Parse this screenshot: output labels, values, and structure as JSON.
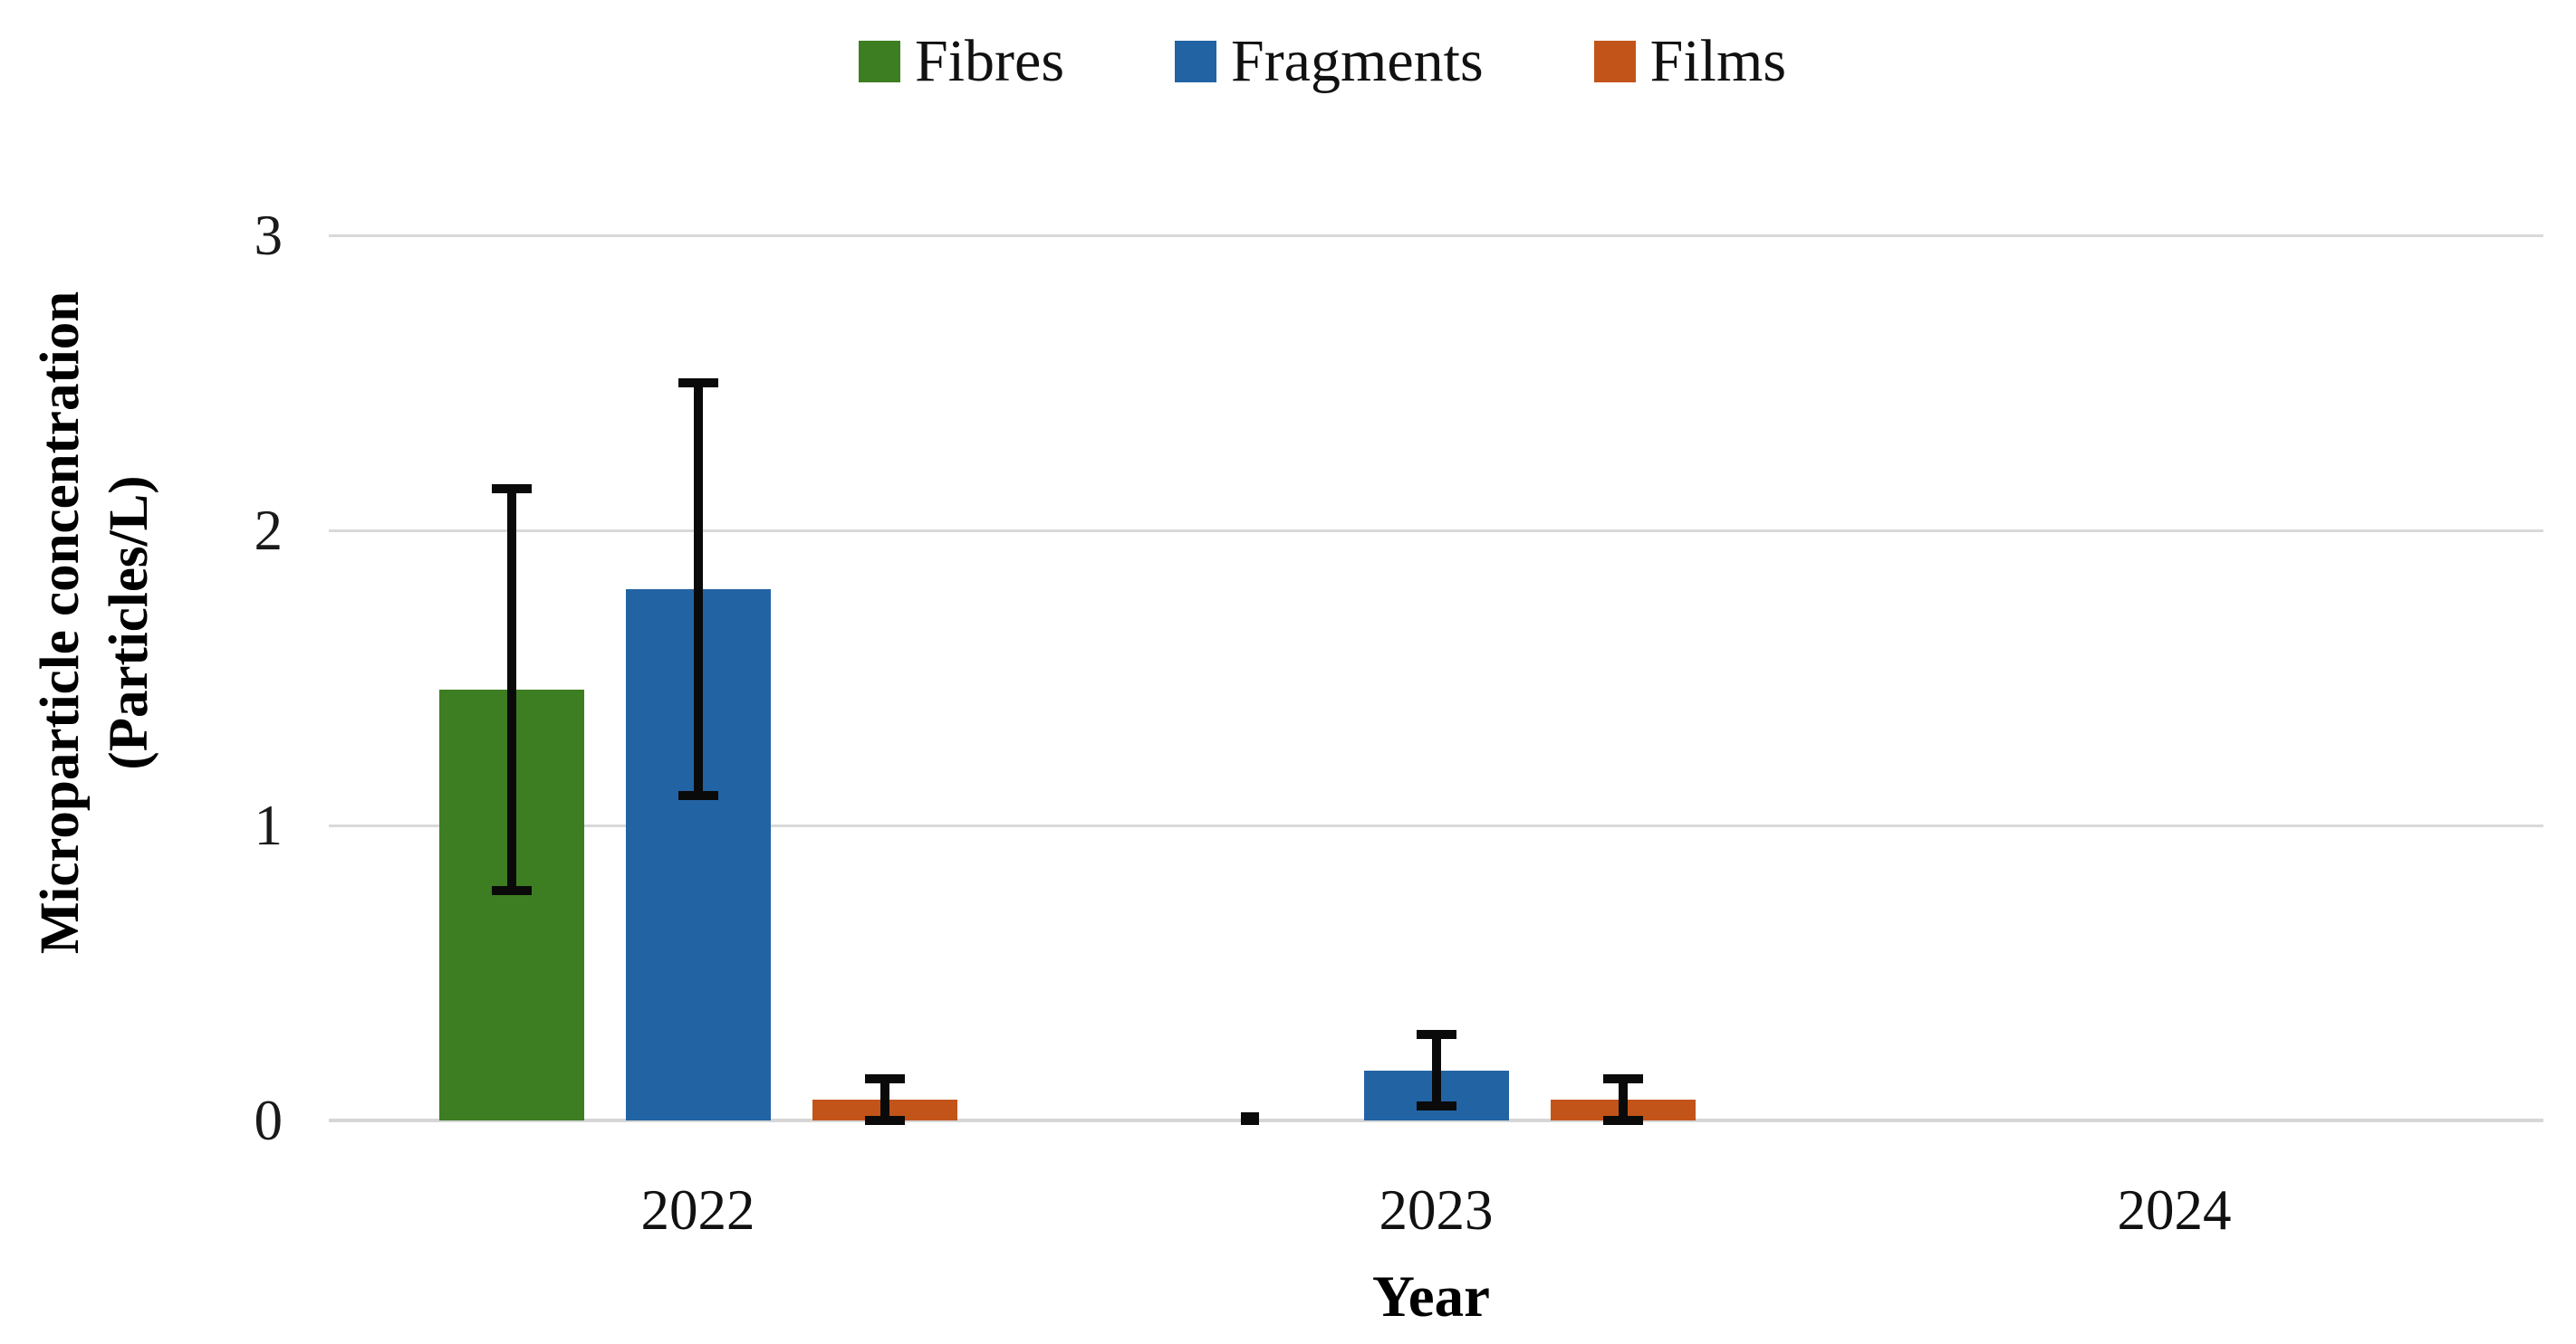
{
  "figure": {
    "background": "#ffffff",
    "text_color": "#111111",
    "gridline_color": "#d9d9d9",
    "error_bar_color": "#0a0a0a"
  },
  "chart_data": {
    "type": "bar",
    "title": "",
    "categories": [
      "2022",
      "2023",
      "2024"
    ],
    "series": [
      {
        "name": "Fibres",
        "color": "#3e7e22",
        "values": [
          1.46,
          0.005,
          null
        ],
        "error_low": [
          0.78,
          0.0,
          null
        ],
        "error_high": [
          2.14,
          0.012,
          null
        ]
      },
      {
        "name": "Fragments",
        "color": "#2263a3",
        "values": [
          1.8,
          0.17,
          null
        ],
        "error_low": [
          1.1,
          0.05,
          null
        ],
        "error_high": [
          2.5,
          0.29,
          null
        ]
      },
      {
        "name": "Films",
        "color": "#c2541a",
        "values": [
          0.07,
          0.07,
          null
        ],
        "error_low": [
          0.0,
          0.0,
          null
        ],
        "error_high": [
          0.14,
          0.14,
          null
        ]
      }
    ],
    "xlabel": "Year",
    "ylabel": "Microparticle concentration (Particles/L)",
    "ylabel_lines": [
      "Microparticle concentration",
      "(Particles/L)"
    ],
    "yticks": [
      0,
      1,
      2,
      3
    ],
    "ylim": [
      0,
      3
    ],
    "grid": true,
    "legend_position": "top-center"
  }
}
